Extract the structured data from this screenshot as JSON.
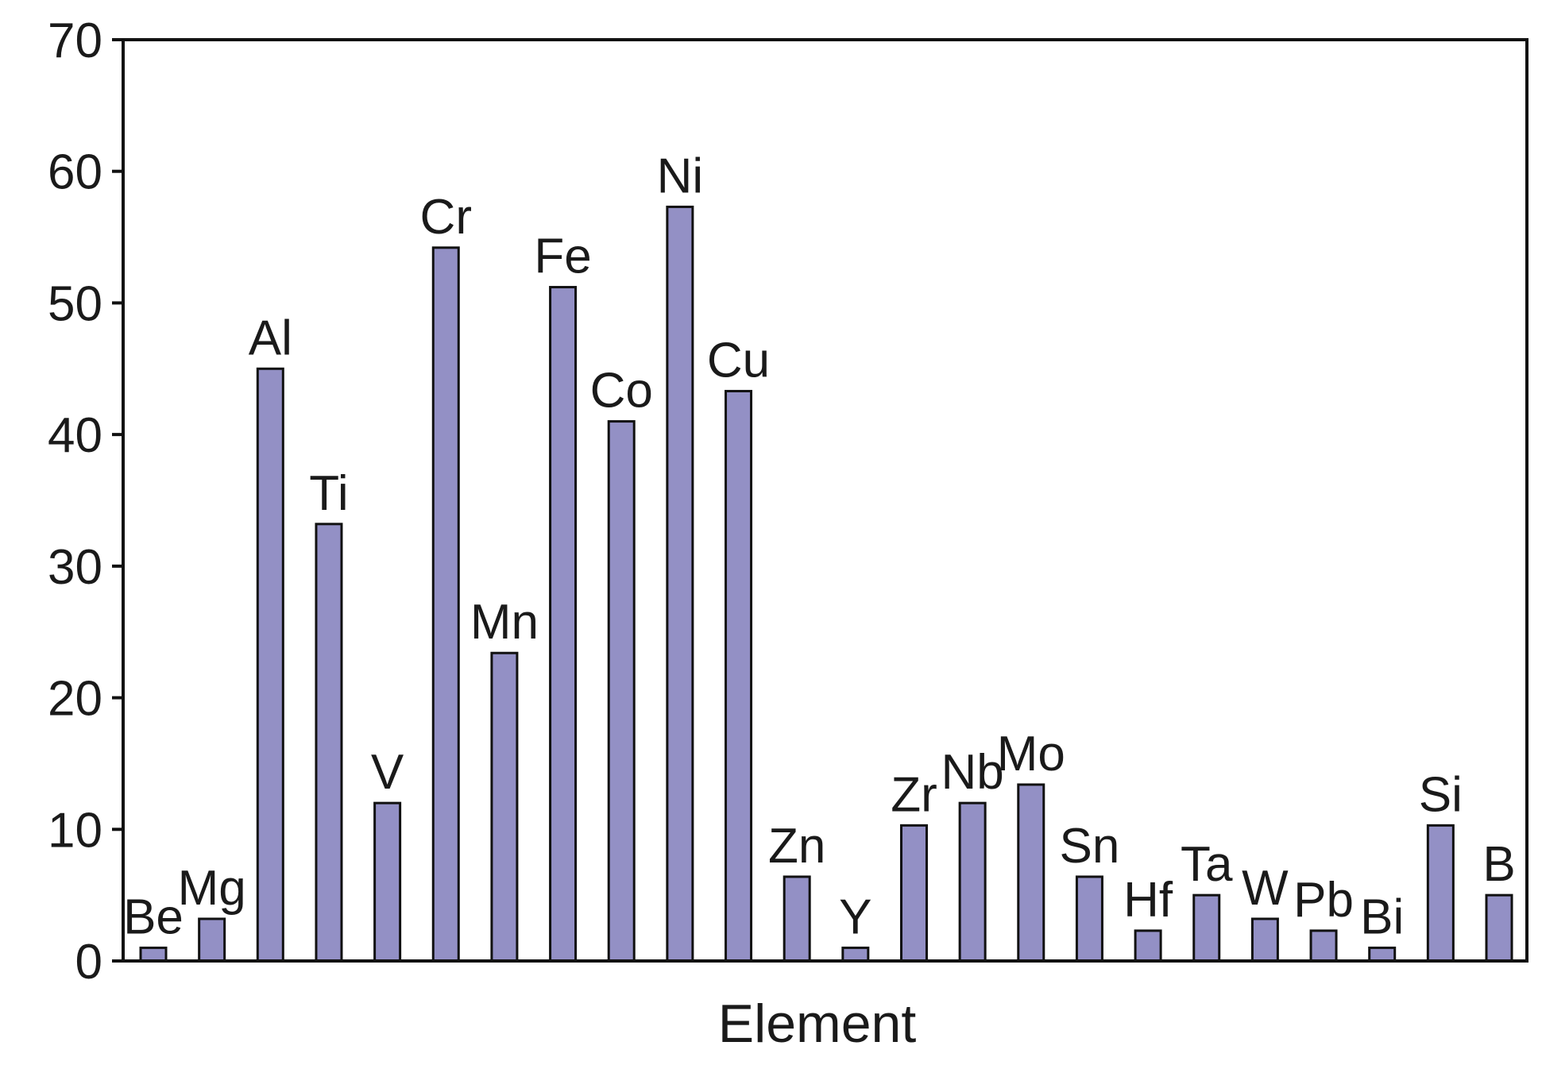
{
  "chart_data": {
    "type": "bar",
    "categories": [
      "Be",
      "Mg",
      "Al",
      "Ti",
      "V",
      "Cr",
      "Mn",
      "Fe",
      "Co",
      "Ni",
      "Cu",
      "Zn",
      "Y",
      "Zr",
      "Nb",
      "Mo",
      "Sn",
      "Hf",
      "Ta",
      "W",
      "Pb",
      "Bi",
      "Si",
      "B"
    ],
    "values": [
      1,
      3.2,
      45,
      33.2,
      12,
      54.2,
      23.4,
      51.2,
      41,
      57.3,
      43.3,
      6.4,
      1,
      10.3,
      12,
      13.4,
      6.4,
      2.3,
      5,
      3.2,
      2.3,
      1,
      10.3,
      5
    ],
    "xlabel": "Element",
    "ylabel": "",
    "ylim": [
      0,
      70
    ],
    "yticks": [
      "0",
      "10",
      "20",
      "30",
      "40",
      "50",
      "60",
      "70"
    ],
    "bar_color": "#9390c5",
    "bar_stroke": "#111111",
    "grid": false,
    "legend": "none"
  }
}
